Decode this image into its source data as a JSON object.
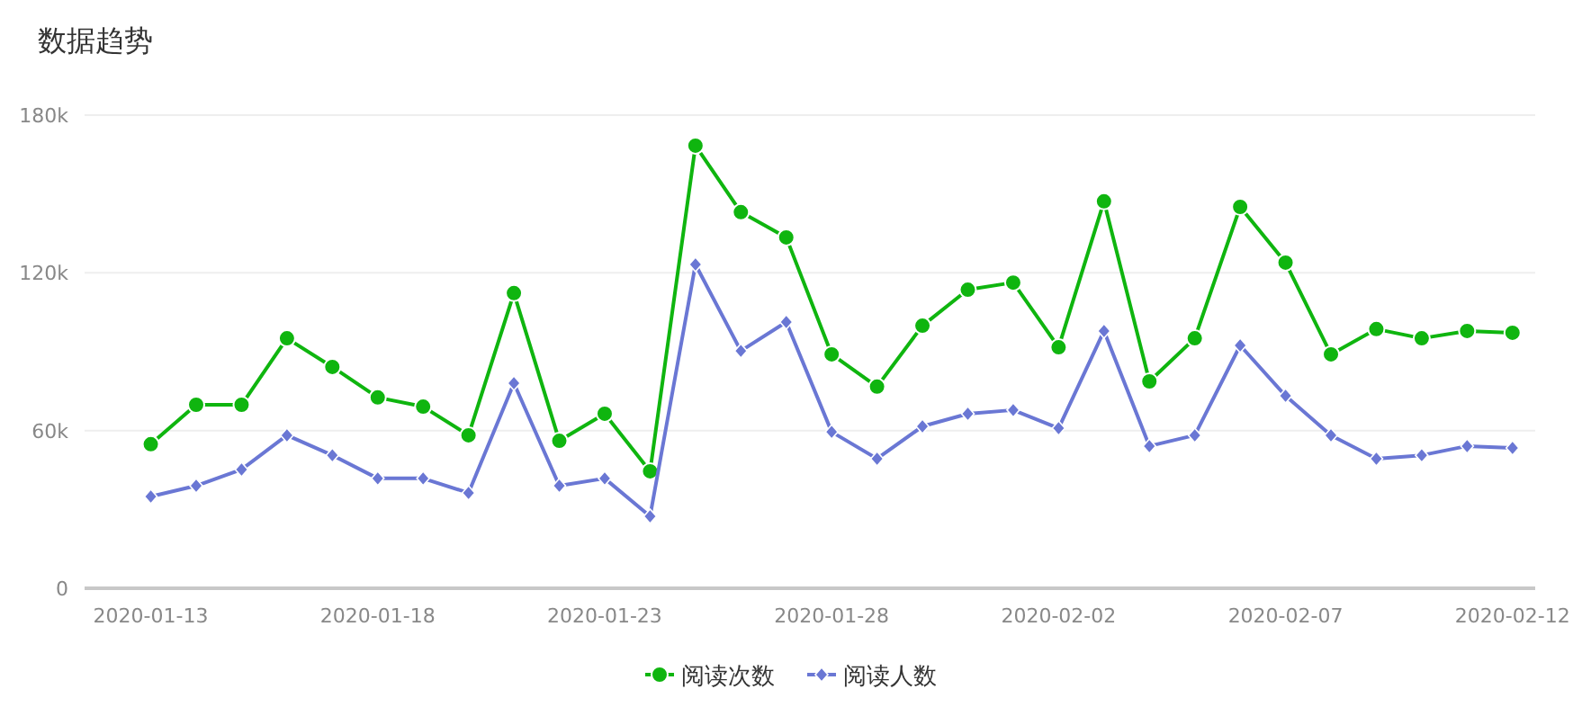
{
  "chart_data": {
    "type": "line",
    "title": "数据趋势",
    "x": [
      "2020-01-13",
      "2020-01-14",
      "2020-01-15",
      "2020-01-16",
      "2020-01-17",
      "2020-01-18",
      "2020-01-19",
      "2020-01-20",
      "2020-01-21",
      "2020-01-22",
      "2020-01-23",
      "2020-01-24",
      "2020-01-25",
      "2020-01-26",
      "2020-01-27",
      "2020-01-28",
      "2020-01-29",
      "2020-01-30",
      "2020-01-31",
      "2020-02-01",
      "2020-02-02",
      "2020-02-03",
      "2020-02-04",
      "2020-02-05",
      "2020-02-06",
      "2020-02-07",
      "2020-02-08",
      "2020-02-09",
      "2020-02-10",
      "2020-02-11",
      "2020-02-12"
    ],
    "series": [
      {
        "name": "阅读次数",
        "color": "#0fb50f",
        "marker": "circle",
        "values": [
          54800,
          69800,
          69800,
          95100,
          84200,
          72600,
          69100,
          58200,
          112300,
          56100,
          66400,
          44500,
          168400,
          143100,
          133500,
          89000,
          76700,
          99900,
          113600,
          116300,
          91700,
          147200,
          78700,
          95100,
          145100,
          123900,
          89000,
          98600,
          95100,
          97900,
          97200
        ]
      },
      {
        "name": "阅读人数",
        "color": "#6a77d4",
        "marker": "diamond",
        "values": [
          34900,
          39000,
          45200,
          58200,
          50600,
          41800,
          41800,
          36300,
          78000,
          39000,
          41800,
          27400,
          123200,
          90300,
          101300,
          59500,
          49300,
          61600,
          66400,
          67800,
          60900,
          97900,
          54100,
          58200,
          92400,
          73200,
          58200,
          49300,
          50600,
          54100,
          53400
        ]
      }
    ],
    "xlim": [
      "2020-01-11T13:00",
      "2020-02-12T12:00"
    ],
    "xticks": [
      "2020-01-13",
      "2020-01-18",
      "2020-01-23",
      "2020-01-28",
      "2020-02-02",
      "2020-02-07",
      "2020-02-12"
    ],
    "ylim": [
      0,
      180000
    ],
    "yticks": [
      0,
      {
        "value": 60000,
        "label": "60k"
      },
      {
        "value": 120000,
        "label": "120k"
      },
      {
        "value": 180000,
        "label": "180k"
      }
    ],
    "grid": "y",
    "legend": "bottom"
  }
}
